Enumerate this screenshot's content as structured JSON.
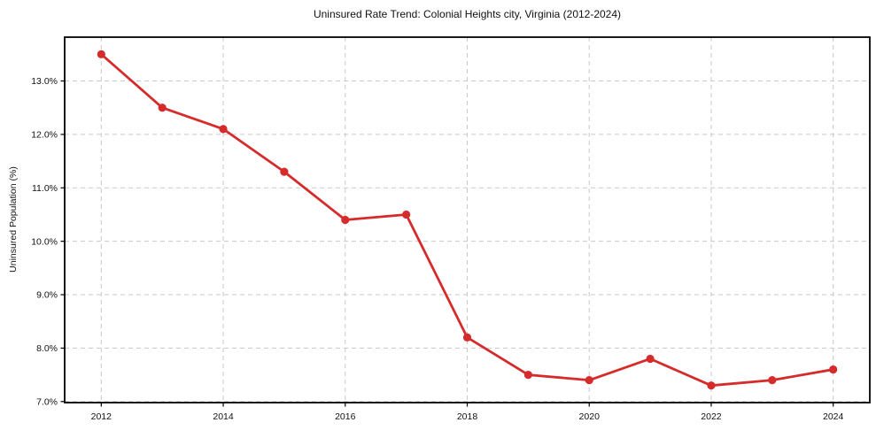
{
  "figure": {
    "background": "#ffffff"
  },
  "chart_data": {
    "type": "line",
    "title": "Uninsured Rate Trend: Colonial Heights city, Virginia (2012-2024)",
    "xlabel": "",
    "ylabel": "Uninsured Population (%)",
    "x": [
      2012,
      2013,
      2014,
      2015,
      2016,
      2017,
      2018,
      2019,
      2020,
      2021,
      2022,
      2023,
      2024
    ],
    "series": [
      {
        "name": "Uninsured rate",
        "color": "#d62b2b",
        "marker": "circle",
        "values": [
          13.5,
          12.5,
          12.1,
          11.3,
          10.4,
          10.5,
          8.2,
          7.5,
          7.4,
          7.8,
          7.3,
          7.4,
          7.6
        ]
      }
    ],
    "xlim": [
      2011.4,
      2024.6
    ],
    "ylim": [
      6.98,
      13.82
    ],
    "xticks": {
      "values": [
        2012,
        2014,
        2016,
        2018,
        2020,
        2022,
        2024
      ],
      "labels": [
        "2012",
        "2014",
        "2016",
        "2018",
        "2020",
        "2022",
        "2024"
      ]
    },
    "yticks": {
      "values": [
        7,
        8,
        9,
        10,
        11,
        12,
        13
      ],
      "labels": [
        "7.0%",
        "8.0%",
        "9.0%",
        "10.0%",
        "11.0%",
        "12.0%",
        "13.0%"
      ]
    },
    "grid": {
      "show": true,
      "color": "#c9c9c9",
      "style": "dashed"
    },
    "legend": "none",
    "axis_color": "#000000"
  }
}
